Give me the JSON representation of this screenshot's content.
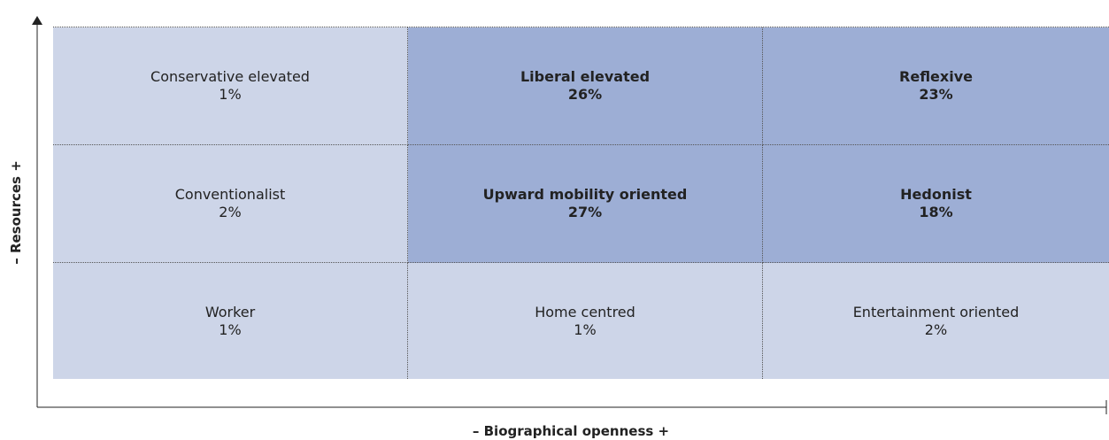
{
  "axes": {
    "y_label": "– Resources +",
    "x_label": "– Biographical openness +"
  },
  "grid": {
    "rows": [
      [
        {
          "label": "Conservative elevated",
          "share": "1%",
          "highlighted": false
        },
        {
          "label": "Liberal elevated",
          "share": "26%",
          "highlighted": true
        },
        {
          "label": "Reflexive",
          "share": "23%",
          "highlighted": true
        }
      ],
      [
        {
          "label": "Conventionalist",
          "share": "2%",
          "highlighted": false
        },
        {
          "label": "Upward mobility oriented",
          "share": "27%",
          "highlighted": true
        },
        {
          "label": "Hedonist",
          "share": "18%",
          "highlighted": true
        }
      ],
      [
        {
          "label": "Worker",
          "share": "1%",
          "highlighted": false
        },
        {
          "label": "Home centred",
          "share": "1%",
          "highlighted": false
        },
        {
          "label": "Entertainment oriented",
          "share": "2%",
          "highlighted": false
        }
      ]
    ]
  }
}
